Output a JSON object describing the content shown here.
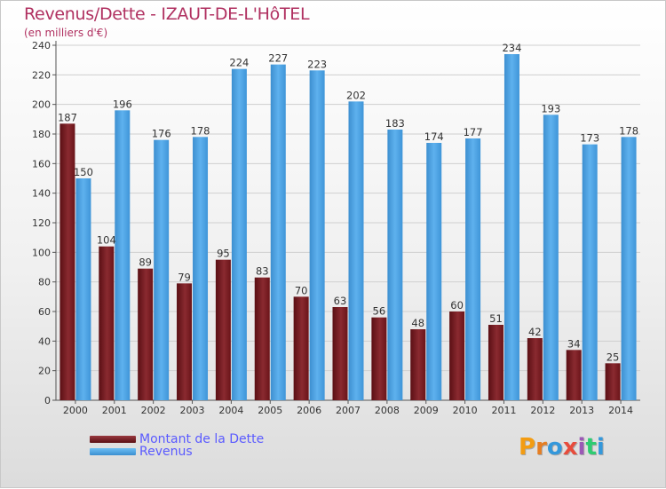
{
  "chart_data": {
    "type": "bar",
    "title": "Revenus/Dette - IZAUT-DE-L'HôTEL",
    "subtitle": "(en milliers d'€)",
    "categories": [
      "2000",
      "2001",
      "2002",
      "2003",
      "2004",
      "2005",
      "2006",
      "2007",
      "2008",
      "2009",
      "2010",
      "2011",
      "2012",
      "2013",
      "2014"
    ],
    "series": [
      {
        "name": "Montant de la Dette",
        "color": "#7a1c22",
        "values": [
          187,
          104,
          89,
          79,
          95,
          83,
          70,
          63,
          56,
          48,
          60,
          51,
          42,
          34,
          25
        ]
      },
      {
        "name": "Revenus",
        "color": "#4ea6e6",
        "values": [
          150,
          196,
          176,
          178,
          224,
          227,
          223,
          202,
          183,
          174,
          177,
          234,
          193,
          173,
          178
        ]
      }
    ],
    "ylim": [
      0,
      240
    ],
    "yticks": [
      0,
      20,
      40,
      60,
      80,
      100,
      120,
      140,
      160,
      180,
      200,
      220,
      240
    ],
    "grid": true,
    "legend": "bottom-left"
  },
  "legend": {
    "debt_label": "Montant de la Dette",
    "revenue_label": "Revenus"
  },
  "logo": {
    "letters": [
      "P",
      "r",
      "o",
      "x",
      "i",
      "t",
      "i"
    ],
    "colors": [
      "#f39c12",
      "#e67e22",
      "#3498db",
      "#e74c3c",
      "#9b59b6",
      "#2ecc71",
      "#3498db"
    ]
  }
}
